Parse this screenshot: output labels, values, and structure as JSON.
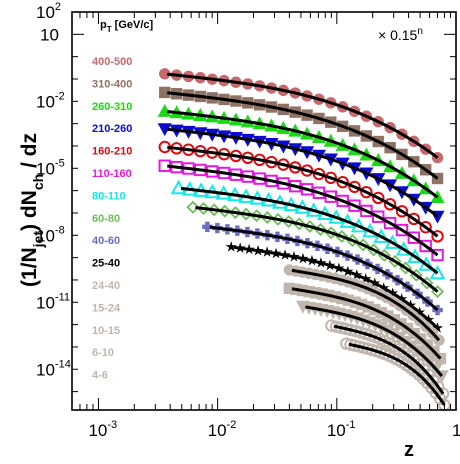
{
  "chart_data": {
    "type": "line",
    "x_scale": "log",
    "y_scale": "log",
    "xlim": [
      0.0006,
      1
    ],
    "ylim": [
      1.5e-16,
      100
    ],
    "xlabel": "z",
    "ylabel_parts": [
      "(1/N",
      "jet",
      ") dN",
      "ch",
      " / dz"
    ],
    "legend_title": "p",
    "legend_title_sub": "T",
    "legend_title_unit": " [GeV/c]",
    "scale_note": "× 0.15",
    "scale_note_exp": "n",
    "x_ticks": [
      {
        "value": 0.001,
        "base": "10",
        "exp": "-3"
      },
      {
        "value": 0.01,
        "base": "10",
        "exp": "-2"
      },
      {
        "value": 0.1,
        "base": "10",
        "exp": "-1"
      },
      {
        "value": 1,
        "base": "1",
        "exp": ""
      }
    ],
    "y_ticks": [
      {
        "value": 100,
        "base": "10",
        "exp": "2"
      },
      {
        "value": 10,
        "base": "10",
        "exp": ""
      },
      {
        "value": 0.01,
        "base": "10",
        "exp": "-2"
      },
      {
        "value": 1e-05,
        "base": "10",
        "exp": "-5"
      },
      {
        "value": 1e-08,
        "base": "10",
        "exp": "-8"
      },
      {
        "value": 1e-11,
        "base": "10",
        "exp": "-11"
      },
      {
        "value": 1e-14,
        "base": "10",
        "exp": "-14"
      }
    ],
    "series": [
      {
        "name": "400-500",
        "color": "#c8696e",
        "marker": "circle",
        "zmin": 0.0036,
        "zmax": 0.7,
        "y_start": 0.17,
        "y_end": 3e-05
      },
      {
        "name": "310-400",
        "color": "#8f7265",
        "marker": "square",
        "zmin": 0.0036,
        "zmax": 0.7,
        "y_start": 0.025,
        "y_end": 3.5e-06
      },
      {
        "name": "260-310",
        "color": "#1bd915",
        "marker": "triangle-up",
        "zmin": 0.0036,
        "zmax": 0.7,
        "y_start": 0.0036,
        "y_end": 5e-07
      },
      {
        "name": "210-260",
        "color": "#0c0cd0",
        "marker": "triangle-down",
        "zmin": 0.0036,
        "zmax": 0.7,
        "y_start": 0.00058,
        "y_end": 7e-08
      },
      {
        "name": "160-210",
        "color": "#dd0b10",
        "marker": "circle-open",
        "zmin": 0.0036,
        "zmax": 0.7,
        "y_start": 9e-05,
        "y_end": 9e-09
      },
      {
        "name": "110-160",
        "color": "#e21ae0",
        "marker": "square-open",
        "zmin": 0.0036,
        "zmax": 0.7,
        "y_start": 1.3e-05,
        "y_end": 1.3e-09
      },
      {
        "name": "80-110",
        "color": "#19e6e6",
        "marker": "triangle-open",
        "zmin": 0.0047,
        "zmax": 0.7,
        "y_start": 1.3e-06,
        "y_end": 2e-10
      },
      {
        "name": "60-80",
        "color": "#6cbf59",
        "marker": "diamond-open",
        "zmin": 0.0062,
        "zmax": 0.7,
        "y_start": 1.8e-07,
        "y_end": 3e-11
      },
      {
        "name": "40-60",
        "color": "#6e6ec5",
        "marker": "cross",
        "zmin": 0.0082,
        "zmax": 0.7,
        "y_start": 2.4e-08,
        "y_end": 4.5e-12
      },
      {
        "name": "25-40",
        "color": "#000000",
        "marker": "star",
        "zmin": 0.013,
        "zmax": 0.7,
        "y_start": 3e-09,
        "y_end": 7e-13
      },
      {
        "name": "24-40",
        "color": "#c1b6ad",
        "marker": "circle",
        "zmin": 0.04,
        "zmax": 0.72,
        "y_start": 2.8e-10,
        "y_end": 2e-13
      },
      {
        "name": "15-24",
        "color": "#c1b6ad",
        "marker": "square",
        "zmin": 0.04,
        "zmax": 0.74,
        "y_start": 4.2e-11,
        "y_end": 3e-14
      },
      {
        "name": "10-15",
        "color": "#c1b6ad",
        "marker": "triangle-down",
        "zmin": 0.052,
        "zmax": 0.76,
        "y_start": 6.5e-12,
        "y_end": 5e-15
      },
      {
        "name": "6-10",
        "color": "#c1b6ad",
        "marker": "circle-open",
        "zmin": 0.09,
        "zmax": 0.78,
        "y_start": 9e-13,
        "y_end": 8e-16
      },
      {
        "name": "4-6",
        "color": "#c1b6ad",
        "marker": "circle-open",
        "zmin": 0.12,
        "zmax": 0.8,
        "y_start": 1.4e-13,
        "y_end": 2.5e-16
      }
    ]
  }
}
